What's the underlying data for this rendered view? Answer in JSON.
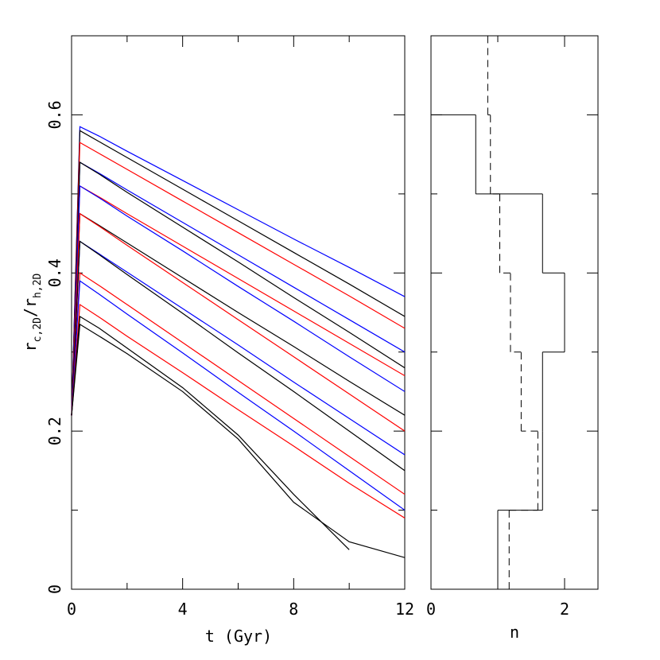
{
  "charts": [
    {
      "type": "line",
      "xlabel": "t (Gyr)",
      "ylabel": [
        "r",
        "c,2D",
        "/r",
        "h,2D"
      ],
      "xlim": [
        0,
        12
      ],
      "ylim": [
        0,
        0.7
      ],
      "xticks": [
        0,
        4,
        8,
        12
      ],
      "xminorticks": [
        2,
        6,
        10
      ],
      "yticks": [
        0,
        0.2,
        0.4,
        0.6
      ],
      "yminorticks": [
        0.1,
        0.3,
        0.5
      ],
      "x": [
        0,
        0.3,
        1,
        2,
        4,
        6,
        8,
        10,
        12
      ],
      "series": [
        {
          "color": "#0000ff",
          "values": [
            0.22,
            0.585,
            0.573,
            0.554,
            0.517,
            0.48,
            0.443,
            0.407,
            0.37
          ]
        },
        {
          "color": "#000000",
          "values": [
            0.22,
            0.58,
            0.566,
            0.546,
            0.506,
            0.466,
            0.426,
            0.386,
            0.345
          ]
        },
        {
          "color": "#ff0000",
          "values": [
            0.22,
            0.565,
            0.551,
            0.531,
            0.491,
            0.451,
            0.411,
            0.371,
            0.33
          ]
        },
        {
          "color": "#0000ff",
          "values": [
            0.22,
            0.54,
            0.526,
            0.505,
            0.464,
            0.423,
            0.382,
            0.341,
            0.3
          ]
        },
        {
          "color": "#000000",
          "values": [
            0.22,
            0.54,
            0.525,
            0.502,
            0.458,
            0.414,
            0.369,
            0.325,
            0.28
          ]
        },
        {
          "color": "#ff0000",
          "values": [
            0.22,
            0.51,
            0.496,
            0.475,
            0.434,
            0.393,
            0.352,
            0.311,
            0.27
          ]
        },
        {
          "color": "#0000ff",
          "values": [
            0.22,
            0.51,
            0.495,
            0.472,
            0.428,
            0.383,
            0.339,
            0.294,
            0.25
          ]
        },
        {
          "color": "#000000",
          "values": [
            0.22,
            0.475,
            0.46,
            0.438,
            0.394,
            0.35,
            0.307,
            0.263,
            0.22
          ]
        },
        {
          "color": "#ff0000",
          "values": [
            0.22,
            0.475,
            0.459,
            0.435,
            0.388,
            0.341,
            0.294,
            0.247,
            0.2
          ]
        },
        {
          "color": "#0000ff",
          "values": [
            0.22,
            0.44,
            0.424,
            0.401,
            0.355,
            0.309,
            0.262,
            0.216,
            0.17
          ]
        },
        {
          "color": "#000000",
          "values": [
            0.22,
            0.44,
            0.423,
            0.398,
            0.349,
            0.299,
            0.25,
            0.2,
            0.15
          ]
        },
        {
          "color": "#ff0000",
          "values": [
            0.22,
            0.4,
            0.384,
            0.36,
            0.312,
            0.264,
            0.216,
            0.168,
            0.12
          ]
        },
        {
          "color": "#0000ff",
          "values": [
            0.22,
            0.39,
            0.373,
            0.348,
            0.299,
            0.249,
            0.2,
            0.15,
            0.1
          ]
        },
        {
          "color": "#ff0000",
          "values": [
            0.22,
            0.36,
            0.344,
            0.32,
            0.274,
            0.227,
            0.181,
            0.134,
            0.09
          ]
        },
        {
          "color": "#000000",
          "values": [
            0.22,
            0.345,
            0.33,
            0.305,
            0.255,
            0.195,
            0.12,
            0.05,
            null
          ]
        },
        {
          "color": "#000000",
          "values": [
            0.22,
            0.335,
            0.32,
            0.298,
            0.25,
            0.19,
            0.11,
            0.06,
            0.04
          ]
        }
      ]
    },
    {
      "type": "histogram",
      "orientation": "horizontal",
      "xlabel": "n",
      "xlim": [
        0,
        2.5
      ],
      "xticks": [
        0,
        2
      ],
      "xminorticks": [
        1
      ],
      "ylim": [
        0,
        0.7
      ],
      "series": [
        {
          "color": "#000000",
          "dashed": false,
          "bins": [
            0,
            0.1,
            0.2,
            0.3,
            0.4,
            0.5,
            0.6
          ],
          "values": [
            1,
            1.67,
            1.67,
            2,
            1.67,
            0.67
          ]
        },
        {
          "color": "#000000",
          "dashed": true,
          "bins": [
            0,
            0.1,
            0.2,
            0.3,
            0.4,
            0.5,
            0.6,
            0.7
          ],
          "values": [
            1.17,
            1.6,
            1.35,
            1.19,
            1.03,
            0.89,
            0.85
          ]
        }
      ]
    }
  ]
}
